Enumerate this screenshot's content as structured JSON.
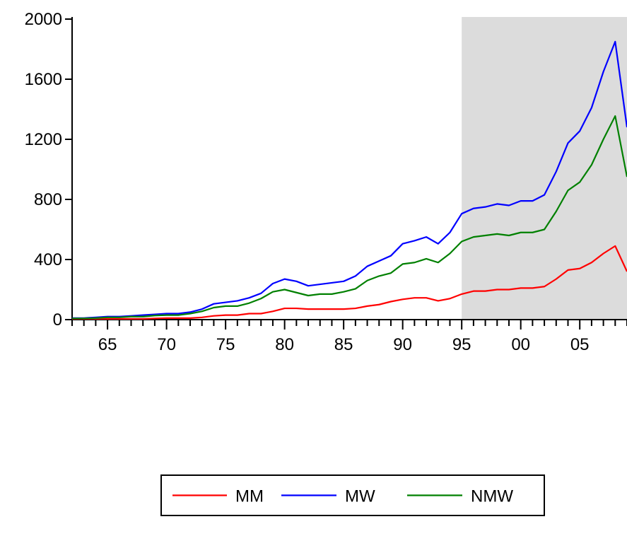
{
  "chart_data": {
    "type": "line",
    "title": "",
    "xlabel": "",
    "ylabel": "",
    "x": [
      1962,
      1963,
      1964,
      1965,
      1966,
      1967,
      1968,
      1969,
      1970,
      1971,
      1972,
      1973,
      1974,
      1975,
      1976,
      1977,
      1978,
      1979,
      1980,
      1981,
      1982,
      1983,
      1984,
      1985,
      1986,
      1987,
      1988,
      1989,
      1990,
      1991,
      1992,
      1993,
      1994,
      1995,
      1996,
      1997,
      1998,
      1999,
      2000,
      2001,
      2002,
      2003,
      2004,
      2005,
      2006,
      2007,
      2008,
      2009
    ],
    "xlim": [
      1962,
      2009
    ],
    "ylim": [
      0,
      2000
    ],
    "yticks": [
      0,
      400,
      800,
      1200,
      1600,
      2000
    ],
    "ytick_labels": [
      "0",
      "400",
      "800",
      "1200",
      "1600",
      "2000"
    ],
    "xticks": [
      1965,
      1970,
      1975,
      1980,
      1985,
      1990,
      1995,
      2000,
      2005
    ],
    "xtick_labels": [
      "65",
      "70",
      "75",
      "80",
      "85",
      "90",
      "95",
      "00",
      "05"
    ],
    "shaded_region": {
      "from": 1995,
      "to": 2009,
      "color": "#dcdcdc"
    },
    "grid": false,
    "legend_position": "bottom-center",
    "series": [
      {
        "name": "MM",
        "color": "#ff0000",
        "values": [
          2,
          3,
          5,
          5,
          5,
          5,
          5,
          8,
          10,
          10,
          10,
          15,
          25,
          30,
          30,
          40,
          40,
          55,
          75,
          75,
          70,
          70,
          70,
          70,
          75,
          90,
          100,
          120,
          135,
          145,
          145,
          125,
          140,
          170,
          190,
          190,
          200,
          200,
          210,
          210,
          220,
          270,
          330,
          340,
          380,
          440,
          490,
          320
        ]
      },
      {
        "name": "MW",
        "color": "#0000ff",
        "values": [
          10,
          10,
          15,
          20,
          20,
          25,
          30,
          35,
          40,
          40,
          50,
          70,
          105,
          115,
          125,
          145,
          175,
          240,
          270,
          255,
          225,
          235,
          245,
          255,
          290,
          355,
          390,
          425,
          505,
          525,
          550,
          505,
          580,
          705,
          740,
          750,
          770,
          760,
          790,
          790,
          830,
          985,
          1175,
          1255,
          1410,
          1650,
          1850,
          1280
        ]
      },
      {
        "name": "NMW",
        "color": "#008000",
        "values": [
          8,
          8,
          10,
          15,
          15,
          20,
          20,
          27,
          30,
          30,
          40,
          55,
          80,
          90,
          90,
          110,
          140,
          185,
          200,
          180,
          160,
          170,
          170,
          185,
          205,
          260,
          290,
          310,
          370,
          380,
          405,
          380,
          440,
          520,
          550,
          560,
          570,
          560,
          580,
          580,
          600,
          720,
          860,
          915,
          1030,
          1200,
          1355,
          950
        ]
      }
    ]
  }
}
